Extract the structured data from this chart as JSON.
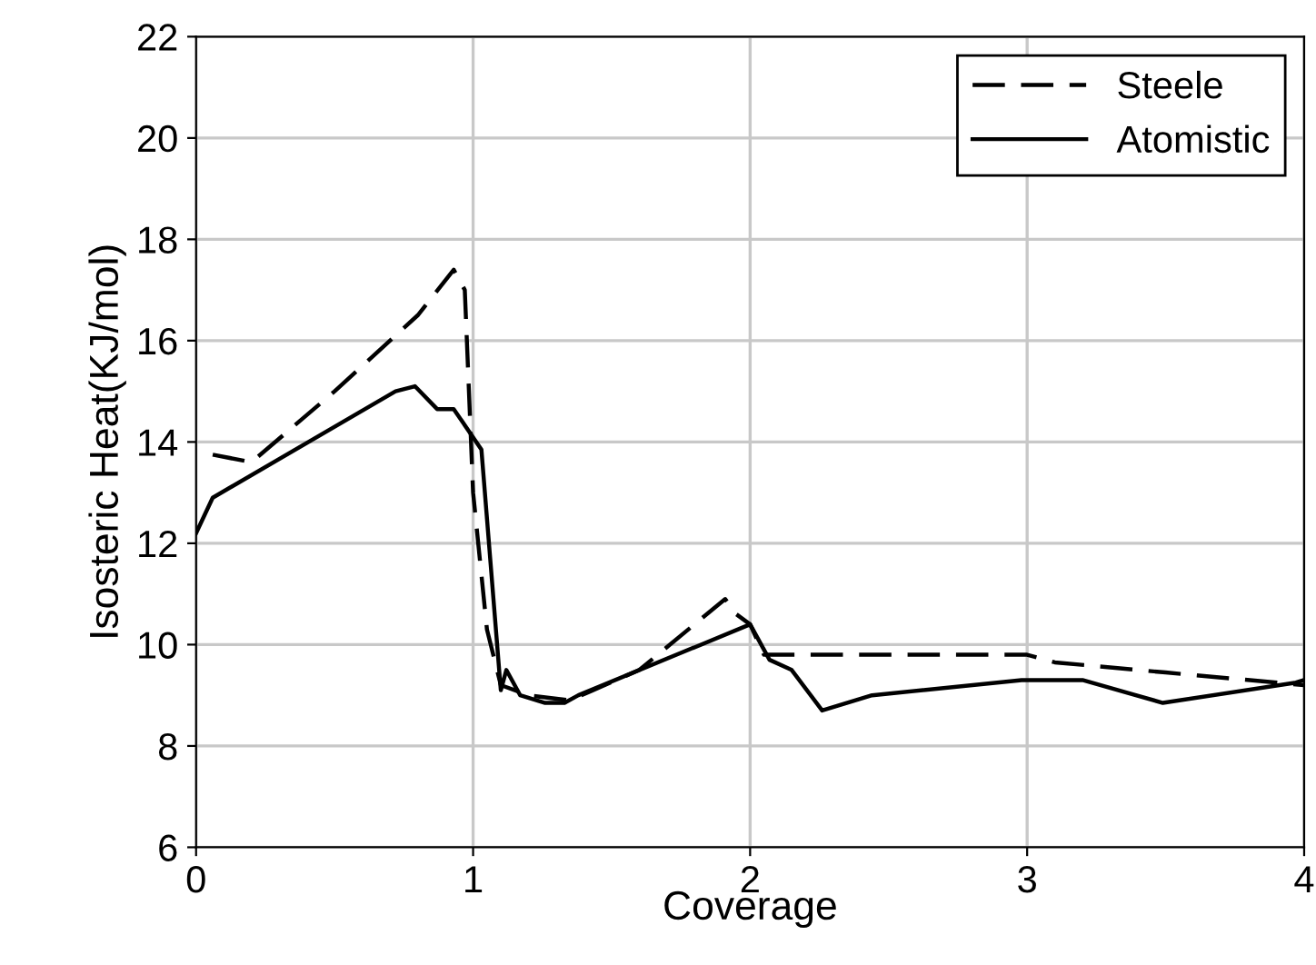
{
  "chart_data": {
    "type": "line",
    "xlabel": "Coverage",
    "ylabel": "Isosteric Heat(KJ/mol)",
    "xlim": [
      0,
      4
    ],
    "xticks": [
      0,
      1,
      2,
      3,
      4
    ],
    "ylim": [
      6,
      22
    ],
    "yticks": [
      6,
      8,
      10,
      12,
      14,
      16,
      18,
      20,
      22
    ],
    "grid": true,
    "legend": "top right",
    "marker": "none",
    "series": [
      {
        "name": "Steele",
        "color": "#000000",
        "line_style": "dashed",
        "x": [
          0.06,
          0.2,
          0.5,
          0.8,
          0.93,
          0.97,
          1.0,
          1.05,
          1.1,
          1.2,
          1.35,
          1.6,
          1.91,
          1.95,
          2.0,
          2.05,
          3.0,
          3.1,
          3.5,
          4.0
        ],
        "values": [
          13.75,
          13.6,
          15.0,
          16.5,
          17.4,
          17.0,
          13.0,
          10.3,
          9.2,
          9.0,
          8.9,
          9.5,
          10.9,
          10.6,
          10.4,
          9.8,
          9.8,
          9.65,
          9.45,
          9.2
        ]
      },
      {
        "name": "Atomistic",
        "color": "#000000",
        "line_style": "solid",
        "x": [
          0.0,
          0.06,
          0.72,
          0.79,
          0.87,
          0.93,
          1.03,
          1.1,
          1.12,
          1.17,
          1.26,
          1.33,
          1.38,
          2.0,
          2.07,
          2.15,
          2.26,
          2.44,
          2.98,
          3.2,
          3.49,
          3.97,
          4.0
        ],
        "values": [
          12.2,
          12.9,
          15.0,
          15.1,
          14.65,
          14.65,
          13.85,
          9.1,
          9.5,
          9.0,
          8.85,
          8.85,
          9.0,
          10.4,
          9.7,
          9.5,
          8.7,
          9.0,
          9.3,
          9.3,
          8.85,
          9.25,
          9.3
        ]
      }
    ]
  }
}
